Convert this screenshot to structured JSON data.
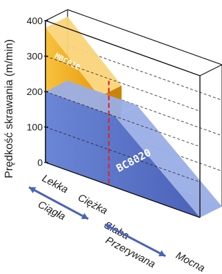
{
  "chart_data": {
    "type": "area",
    "ylabel": "Prędkość skrawania (m/min)",
    "ylim": [
      0,
      400
    ],
    "yticks": [
      0,
      100,
      200,
      300,
      400
    ],
    "grid": true,
    "x_scale": {
      "descriptor_labels": [
        "Lekka",
        "Ciężka",
        "Słaba",
        "Mocna"
      ],
      "group_labels": [
        "Ciągła",
        "Przerywana"
      ]
    },
    "series": [
      {
        "name": "MBC010",
        "color": "#f5b21a",
        "x": [
          0,
          1.05
        ],
        "upper": [
          380,
          240
        ],
        "lower": [
          150,
          150
        ]
      },
      {
        "name": "BC8020",
        "color": "#5a73c7",
        "x": [
          0,
          1.35,
          3.0
        ],
        "upper": [
          200,
          200,
          0
        ],
        "lower": [
          0,
          0,
          0
        ]
      }
    ],
    "divider": {
      "x": 1.15,
      "color": "#e0242b"
    }
  }
}
